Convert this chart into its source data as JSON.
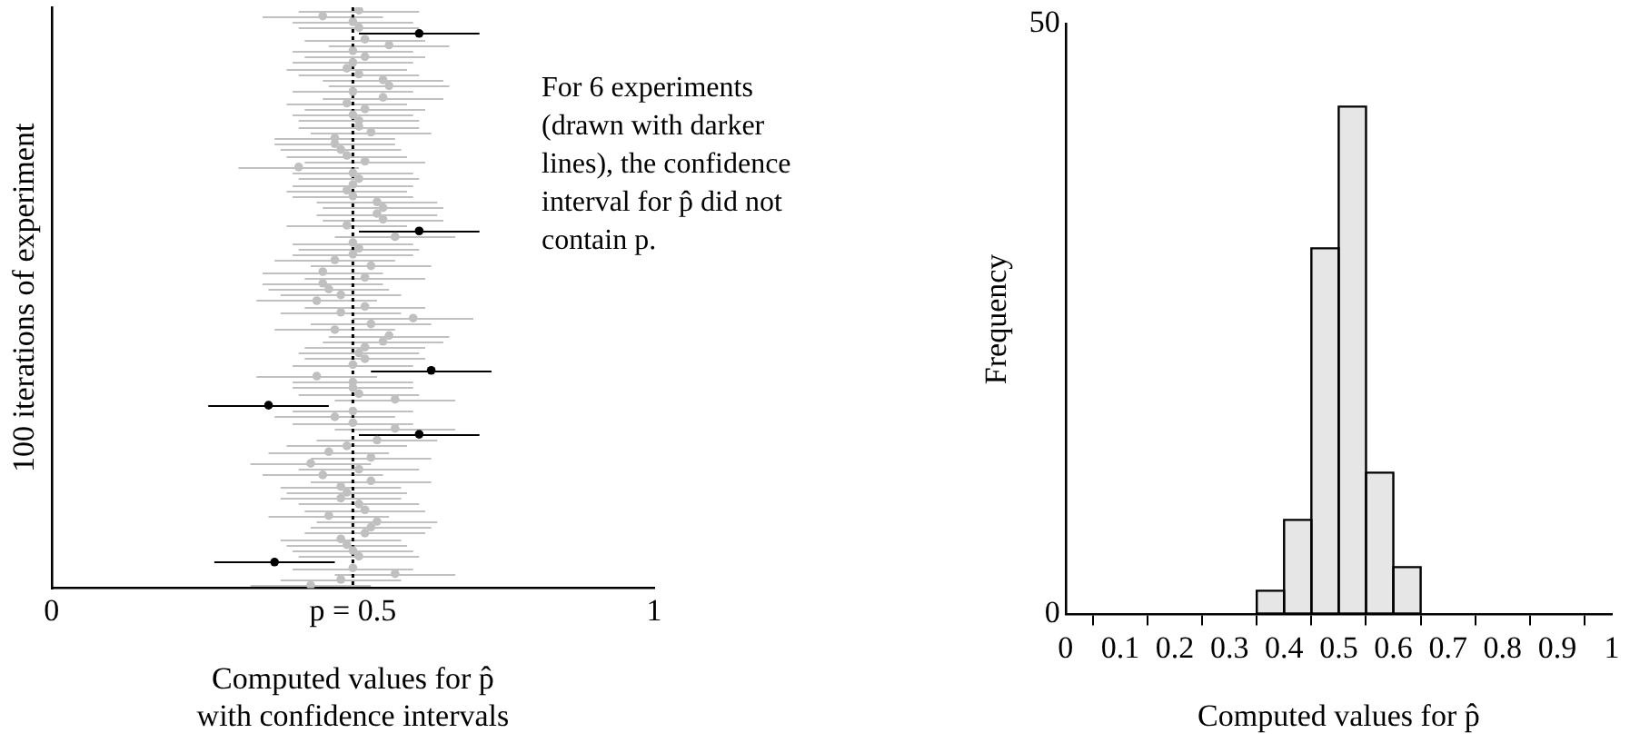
{
  "chart_data": [
    {
      "type": "scatter",
      "orientation": "horizontal",
      "marker": "circle",
      "tick_labels": "x",
      "xlabel": "Computed values for p̂\nwith confidence intervals",
      "ylabel": "100 iterations of experiment",
      "annotations": [
        "For 6 experiments (drawn with darker lines), the confidence interval for p̂ did not contain p."
      ],
      "categories": [
        null,
        null,
        null,
        null,
        null,
        null,
        null,
        null,
        null,
        null,
        null,
        null,
        null,
        null,
        null,
        null,
        null,
        null,
        null,
        null,
        null,
        null,
        null,
        null,
        null,
        null,
        null,
        null,
        null,
        null,
        null,
        null,
        null,
        null,
        null,
        null,
        null,
        null,
        null,
        null,
        null,
        null,
        null,
        null,
        null,
        null,
        null,
        null,
        null,
        null,
        null,
        null,
        null,
        null,
        null,
        null,
        null,
        null,
        null,
        null,
        null,
        null,
        null,
        null,
        null,
        null,
        null,
        null,
        null,
        null,
        null,
        null,
        null,
        null,
        null,
        null,
        null,
        null,
        null,
        null,
        null,
        null,
        null,
        null,
        null,
        null,
        null,
        null,
        null,
        null,
        null,
        null,
        null,
        null,
        null,
        null,
        null,
        null,
        null,
        null
      ],
      "xlim": [
        0,
        1
      ],
      "xticks": [
        0,
        {
          "value": 0.5,
          "label": "p = 0.5"
        },
        1
      ],
      "ref_lines": [
        {
          "axis": "x",
          "value": 0.5,
          "color": "#000000",
          "line_style": "dotted"
        }
      ],
      "series": [
        {
          "color": "#c0c0c0",
          "values": [
            0.51,
            0.45,
            0.5,
            0.51,
            null,
            0.52,
            0.56,
            0.5,
            0.52,
            0.5,
            0.49,
            0.51,
            0.55,
            0.56,
            0.5,
            0.55,
            0.49,
            0.52,
            0.5,
            0.51,
            0.51,
            0.53,
            0.47,
            0.47,
            0.48,
            0.49,
            0.52,
            0.41,
            0.5,
            0.51,
            0.5,
            0.49,
            0.5,
            0.54,
            0.55,
            0.54,
            0.55,
            0.49,
            null,
            0.57,
            0.5,
            0.51,
            0.5,
            0.47,
            0.53,
            0.45,
            0.52,
            0.45,
            0.46,
            0.48,
            0.44,
            0.52,
            0.48,
            0.6,
            0.53,
            0.47,
            0.56,
            0.55,
            0.52,
            0.51,
            0.52,
            0.5,
            null,
            0.44,
            0.5,
            0.5,
            0.51,
            0.57,
            null,
            0.5,
            0.47,
            0.5,
            0.57,
            null,
            0.54,
            0.49,
            0.46,
            0.53,
            0.43,
            0.51,
            0.45,
            0.53,
            0.48,
            0.49,
            0.48,
            0.51,
            0.52,
            0.46,
            0.54,
            0.53,
            0.52,
            0.48,
            0.49,
            0.5,
            0.51,
            null,
            0.5,
            0.57,
            0.48,
            0.43
          ],
          "errors": [
            0.1,
            0.1,
            0.1,
            0.1,
            null,
            0.1,
            0.1,
            0.1,
            0.1,
            0.1,
            0.1,
            0.1,
            0.1,
            0.1,
            0.1,
            0.1,
            0.1,
            0.1,
            0.1,
            0.1,
            0.1,
            0.1,
            0.1,
            0.1,
            0.1,
            0.1,
            0.1,
            0.1,
            0.1,
            0.1,
            0.1,
            0.1,
            0.1,
            0.1,
            0.1,
            0.1,
            0.1,
            0.1,
            null,
            0.1,
            0.1,
            0.1,
            0.1,
            0.1,
            0.1,
            0.1,
            0.1,
            0.1,
            0.1,
            0.1,
            0.1,
            0.1,
            0.1,
            0.1,
            0.1,
            0.1,
            0.1,
            0.1,
            0.1,
            0.1,
            0.1,
            0.1,
            null,
            0.1,
            0.1,
            0.1,
            0.1,
            0.1,
            null,
            0.1,
            0.1,
            0.1,
            0.1,
            null,
            0.1,
            0.1,
            0.1,
            0.1,
            0.1,
            0.1,
            0.1,
            0.1,
            0.1,
            0.1,
            0.1,
            0.1,
            0.1,
            0.1,
            0.1,
            0.1,
            0.1,
            0.1,
            0.1,
            0.1,
            0.1,
            null,
            0.1,
            0.1,
            0.1,
            0.1
          ]
        },
        {
          "color": "#000000",
          "values": [
            null,
            null,
            null,
            null,
            0.61,
            null,
            null,
            null,
            null,
            null,
            null,
            null,
            null,
            null,
            null,
            null,
            null,
            null,
            null,
            null,
            null,
            null,
            null,
            null,
            null,
            null,
            null,
            null,
            null,
            null,
            null,
            null,
            null,
            null,
            null,
            null,
            null,
            null,
            0.61,
            null,
            null,
            null,
            null,
            null,
            null,
            null,
            null,
            null,
            null,
            null,
            null,
            null,
            null,
            null,
            null,
            null,
            null,
            null,
            null,
            null,
            null,
            null,
            0.63,
            null,
            null,
            null,
            null,
            null,
            0.36,
            null,
            null,
            null,
            null,
            0.61,
            null,
            null,
            null,
            null,
            null,
            null,
            null,
            null,
            null,
            null,
            null,
            null,
            null,
            null,
            null,
            null,
            null,
            null,
            null,
            null,
            null,
            0.37,
            null,
            null,
            null,
            null
          ],
          "errors": [
            null,
            null,
            null,
            null,
            0.1,
            null,
            null,
            null,
            null,
            null,
            null,
            null,
            null,
            null,
            null,
            null,
            null,
            null,
            null,
            null,
            null,
            null,
            null,
            null,
            null,
            null,
            null,
            null,
            null,
            null,
            null,
            null,
            null,
            null,
            null,
            null,
            null,
            null,
            0.1,
            null,
            null,
            null,
            null,
            null,
            null,
            null,
            null,
            null,
            null,
            null,
            null,
            null,
            null,
            null,
            null,
            null,
            null,
            null,
            null,
            null,
            null,
            null,
            0.1,
            null,
            null,
            null,
            null,
            null,
            0.1,
            null,
            null,
            null,
            null,
            0.1,
            null,
            null,
            null,
            null,
            null,
            null,
            null,
            null,
            null,
            null,
            null,
            null,
            null,
            null,
            null,
            null,
            null,
            null,
            null,
            null,
            null,
            0.1,
            null,
            null,
            null,
            null
          ]
        }
      ]
    },
    {
      "type": "histogram",
      "xlabel": "Computed values for p̂",
      "ylabel": "Frequency",
      "color": "#e6e6e6",
      "bins": [
        0.35,
        0.4,
        0.45,
        0.5,
        0.55,
        0.6,
        0.65
      ],
      "values": [
        2,
        8,
        31,
        43,
        12,
        4
      ],
      "xlim": [
        0,
        1
      ],
      "xticks": [
        0,
        0.1,
        0.2,
        0.3,
        0.4,
        0.5,
        0.6,
        0.7,
        0.8,
        0.9,
        1
      ],
      "ylim": [
        0,
        50
      ],
      "yticks": [
        0,
        50
      ]
    }
  ]
}
